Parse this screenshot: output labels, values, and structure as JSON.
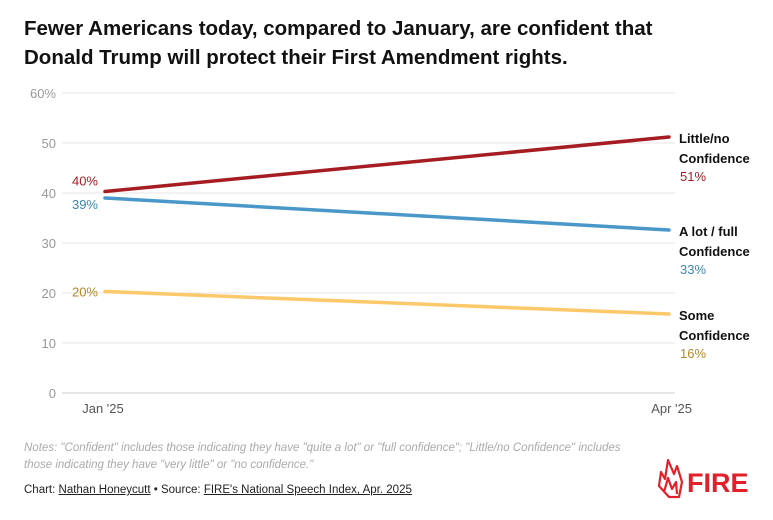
{
  "title_lines": [
    "Fewer Americans today, compared to January, are confident that",
    "Donald Trump will protect their First Amendment rights."
  ],
  "chart_data": {
    "type": "line",
    "title": "Fewer Americans today, compared to January, are confident that Donald Trump will protect their First Amendment rights.",
    "x": [
      "Jan '25",
      "Apr '25"
    ],
    "ylim": [
      0,
      60
    ],
    "yticks": [
      0,
      10,
      20,
      30,
      40,
      50,
      60
    ],
    "ytick_labels": [
      "0",
      "10",
      "20",
      "30",
      "40",
      "50",
      "60%"
    ],
    "grid": true,
    "series": [
      {
        "name": "Little/no Confidence",
        "label_lines": [
          "Little/no",
          "Confidence"
        ],
        "values": [
          40.3,
          51.2
        ],
        "start_label": "40%",
        "end_label": "51%",
        "color": "#a51d22",
        "label_color": "#a51d22"
      },
      {
        "name": "A lot / full Confidence",
        "label_lines": [
          "A lot / full",
          "Confidence"
        ],
        "values": [
          39.0,
          32.6
        ],
        "start_label": "39%",
        "end_label": "33%",
        "color": "#4a98c9",
        "label_color": "#3b86b5"
      },
      {
        "name": "Some Confidence",
        "label_lines": [
          "Some",
          "Confidence"
        ],
        "values": [
          20.3,
          15.8
        ],
        "start_label": "20%",
        "end_label": "16%",
        "color": "#fcc86a",
        "label_color": "#b3892a"
      }
    ]
  },
  "notes": "Notes: \"Confident\" includes those indicating they have \"quite a lot\" or \"full confidence\"; \"Little/no Confidence\" includes those indicating they have \"very little\" or \"no confidence.\"",
  "credit": {
    "chart_prefix": "Chart: ",
    "author": "Nathan Honeycutt",
    "separator": " • Source: ",
    "source": "FIRE's National Speech Index, Apr. 2025"
  },
  "logo_text": "FIRE",
  "colors": {
    "grid": "#e6e6e6",
    "axis_label": "#999999",
    "logo_red": "#e3202a"
  }
}
